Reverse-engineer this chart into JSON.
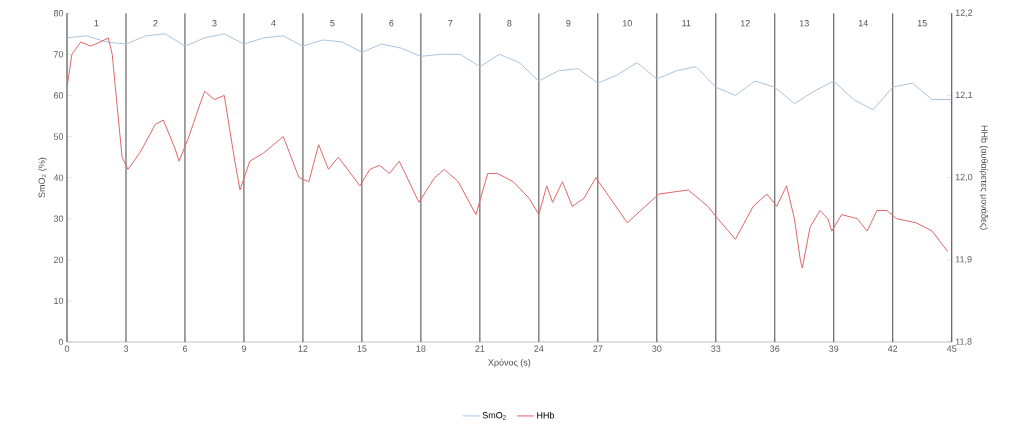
{
  "chart_data": {
    "type": "line",
    "xlabel": "Χρόνος (s)",
    "ylabel": "SmO$_{2}$ (%)",
    "y2label": "HHb (αυθαίρετες μονάδες)",
    "xlim": [
      0,
      45
    ],
    "xticks": [
      0,
      3,
      6,
      9,
      12,
      15,
      18,
      21,
      24,
      27,
      30,
      33,
      36,
      39,
      42,
      45
    ],
    "ylim": [
      0,
      80
    ],
    "yticks": [
      0,
      10,
      20,
      30,
      40,
      50,
      60,
      70,
      80
    ],
    "y2lim": [
      11.8,
      12.2
    ],
    "y2ticks": [
      {
        "value": 11.8,
        "label": "11,8"
      },
      {
        "value": 11.9,
        "label": "11,9"
      },
      {
        "value": 12.0,
        "label": "12,0"
      },
      {
        "value": 12.1,
        "label": "12,1"
      },
      {
        "value": 12.2,
        "label": "12,2"
      }
    ],
    "grid": "x",
    "legend": "bottom",
    "marker": "none",
    "series": [
      {
        "name": "SmO$_{2}$",
        "color": "#a9c4e0",
        "x": [
          0,
          1,
          2,
          3,
          4,
          5,
          6,
          7,
          8,
          9,
          10,
          11,
          12,
          13,
          14,
          15,
          16,
          17,
          18,
          19,
          20,
          21,
          22,
          23,
          24,
          25,
          26,
          27,
          28,
          29,
          30,
          31,
          32,
          33,
          34,
          35,
          36,
          37,
          38,
          39,
          40,
          41,
          42,
          43,
          44,
          45
        ],
        "values": [
          74,
          74.5,
          73,
          72.5,
          74.5,
          75,
          72,
          74,
          75,
          72.5,
          74,
          74.5,
          72,
          73.5,
          73,
          70.5,
          72.5,
          71.5,
          69.5,
          70,
          70,
          67,
          70,
          68,
          63.5,
          66,
          66.5,
          63,
          65,
          68,
          64,
          66,
          67,
          62,
          60,
          63.5,
          62,
          58,
          61,
          63.5,
          59,
          56.5,
          62,
          63,
          59,
          59
        ]
      },
      {
        "name": "HHb",
        "color": "#e06666",
        "axis": "y2",
        "x": [
          0,
          0.25,
          0.7,
          1.2,
          1.7,
          2.1,
          2.3,
          2.6,
          2.8,
          3.1,
          3.7,
          4.5,
          4.9,
          5.5,
          5.7,
          6.2,
          6.7,
          7.0,
          7.5,
          8.0,
          8.5,
          8.8,
          9.3,
          10.0,
          11.0,
          11.8,
          12.3,
          12.8,
          13.3,
          13.8,
          14.9,
          15.4,
          15.9,
          16.4,
          16.9,
          17.9,
          18.7,
          19.2,
          19.9,
          20.8,
          21.4,
          21.9,
          22.7,
          23.5,
          24.0,
          24.4,
          24.7,
          25.2,
          25.7,
          26.3,
          26.9,
          28.5,
          30.1,
          31.6,
          32.6,
          33.1,
          34.0,
          34.9,
          35.6,
          36.1,
          36.6,
          37.0,
          37.3,
          37.4,
          37.8,
          38.3,
          38.7,
          38.9,
          39.4,
          40.2,
          40.7,
          41.2,
          41.7,
          42.2,
          43.2,
          44.0,
          44.8
        ],
        "values": [
          12.11,
          12.15,
          12.165,
          12.16,
          12.165,
          12.17,
          12.15,
          12.075,
          12.025,
          12.01,
          12.03,
          12.065,
          12.07,
          12.035,
          12.02,
          12.05,
          12.085,
          12.105,
          12.095,
          12.1,
          12.025,
          11.985,
          12.02,
          12.03,
          12.05,
          12.0,
          11.995,
          12.04,
          12.01,
          12.025,
          11.99,
          12.01,
          12.015,
          12.005,
          12.02,
          11.97,
          12.0,
          12.01,
          11.995,
          11.955,
          12.005,
          12.005,
          11.995,
          11.975,
          11.955,
          11.99,
          11.97,
          11.995,
          11.965,
          11.975,
          12.0,
          11.945,
          11.98,
          11.985,
          11.965,
          11.95,
          11.925,
          11.965,
          11.98,
          11.965,
          11.99,
          11.95,
          11.9,
          11.89,
          11.94,
          11.96,
          11.95,
          11.935,
          11.955,
          11.95,
          11.935,
          11.96,
          11.96,
          11.95,
          11.945,
          11.935,
          11.91
        ]
      }
    ],
    "annotations": [
      "1",
      "2",
      "3",
      "4",
      "5",
      "6",
      "7",
      "8",
      "9",
      "10",
      "11",
      "12",
      "13",
      "14",
      "15"
    ]
  }
}
